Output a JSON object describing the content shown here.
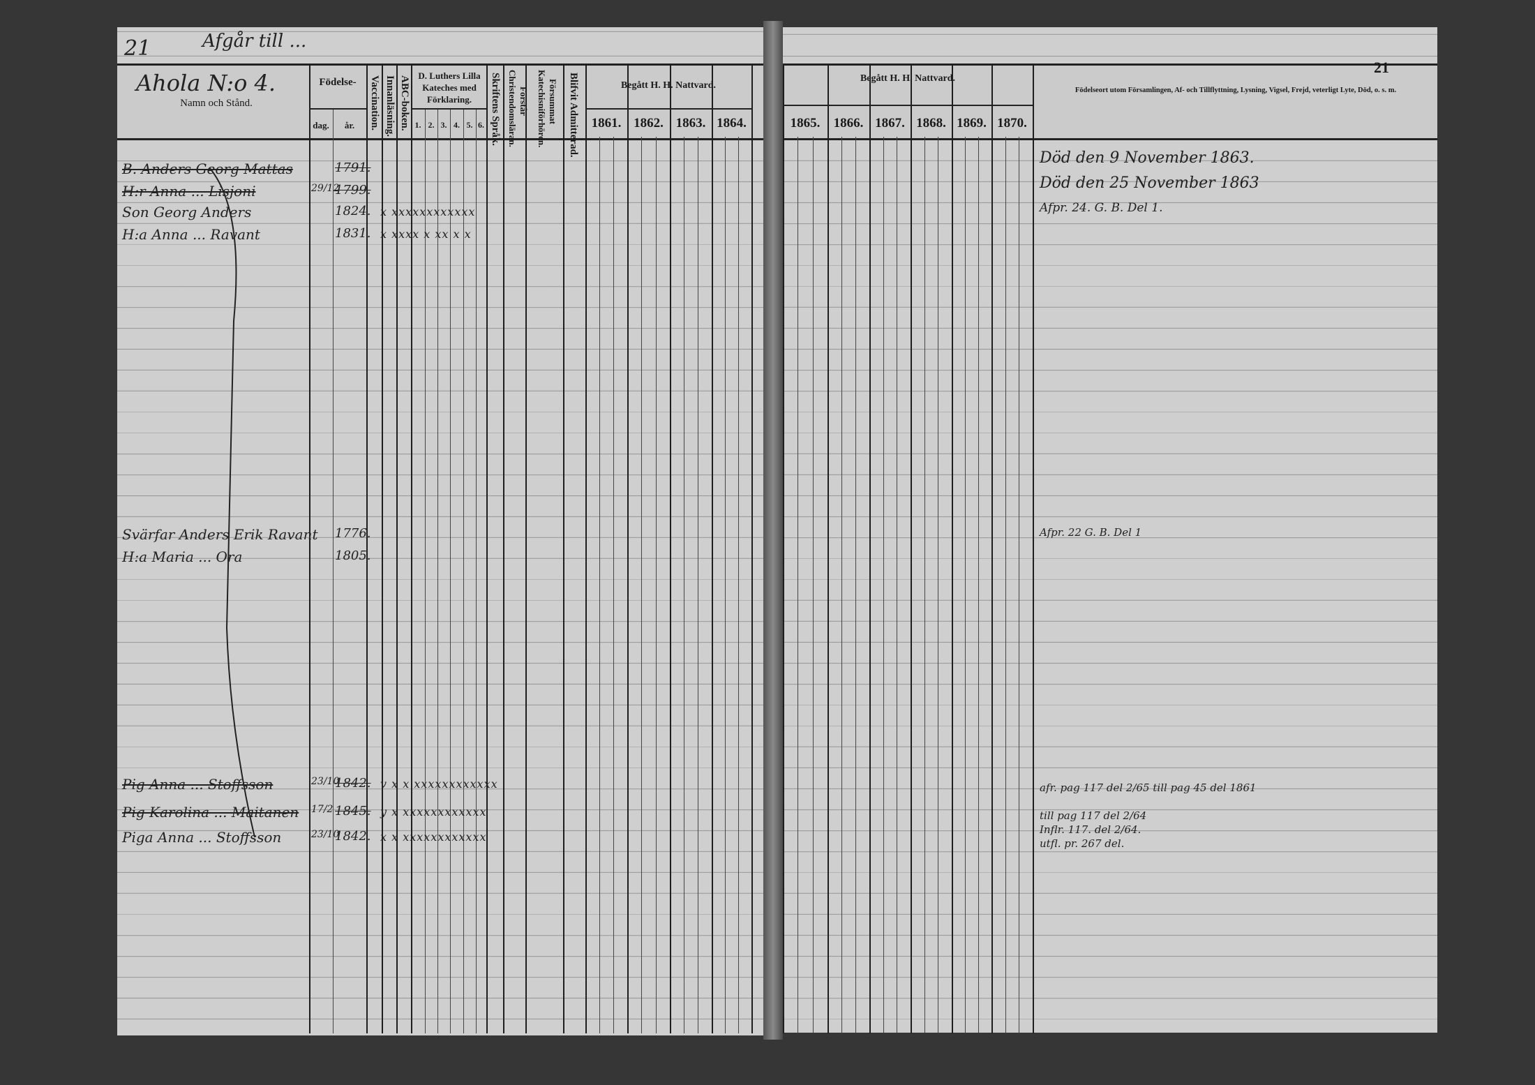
{
  "left_page": {
    "page_number_handwritten": "21",
    "heading_handwritten": "Afgår till ...",
    "household_handwritten": "Ahola N:o 4.",
    "columns": {
      "name": "Namn och Stånd.",
      "birth": "Födelse-",
      "birth_day": "dag.",
      "birth_year": "år.",
      "vaccination": "Vaccination.",
      "reading": "Innanläsning.",
      "abc": "ABC-boken.",
      "catechism": "D. Luthers Lilla Kateches med Förklaring.",
      "catechism_parts": [
        "1.",
        "2.",
        "3.",
        "4.",
        "5.",
        "6."
      ],
      "scripture": "Skriftens Språk.",
      "understands": "Förstår Christendomsläran.",
      "missed": "Försummat Katechisniförhören.",
      "admitted": "Blifvit Admitterad.",
      "communion": "Begått H. H. Nattvard.",
      "years": [
        "1861.",
        "1862.",
        "1863.",
        "1864."
      ]
    },
    "entries": [
      {
        "name": "B. Anders Georg Mattas",
        "day": "",
        "year": "1791.",
        "marks": "",
        "struck": true
      },
      {
        "name": "H:r Anna ... Lisjoni",
        "day": "29/12",
        "year": "1799.",
        "marks": "",
        "struck": true
      },
      {
        "name": "Son Georg Anders",
        "day": "",
        "year": "1824.",
        "marks": "x  xxxxxxxxxxxx",
        "struck": false
      },
      {
        "name": "H:a Anna ... Ravant",
        "day": "",
        "year": "1831.",
        "marks": "x  xxxx x xx x x",
        "struck": false
      },
      {
        "name": "Svärfar Anders Erik Ravant",
        "day": "",
        "year": "1776.",
        "marks": "",
        "struck": false
      },
      {
        "name": "H:a Maria ... Ora",
        "day": "",
        "year": "1805.",
        "marks": "",
        "struck": false
      },
      {
        "name": "Pig Anna ... Stoffsson",
        "day": "23/10",
        "year": "1842.",
        "marks": "v x  x  xxxxxxxxxxxx",
        "struck": true
      },
      {
        "name": "Pig Karolina ... Maitanen",
        "day": "17/2",
        "year": "1845.",
        "marks": "y  x  xxxxxxxxxxxx",
        "struck": true
      },
      {
        "name": "Piga Anna ... Stoffsson",
        "day": "23/10",
        "year": "1842.",
        "marks": "x  x  xxxxxxxxxxxx",
        "struck": false
      }
    ]
  },
  "right_page": {
    "page_number": "21",
    "columns": {
      "communion": "Begått H. H. Nattvard.",
      "years": [
        "1865.",
        "1866.",
        "1867.",
        "1868.",
        "1869.",
        "1870."
      ],
      "remarks": "Födelseort utom Församlingen, Af- och Tillflyttning, Lysning, Vigsel, Frejd, veterligt Lyte, Död, o. s. m."
    },
    "remarks": [
      "Död den 9 November 1863.",
      "Död den 25 November 1863",
      "Afpr. 24. G. B. Del 1.",
      "Afpr. 22 G. B. Del 1",
      "afr. pag 117 del 2/65   till pag 45 del 1861",
      "till pag 117 del 2/64",
      "Inflr. 117. del 2/64.",
      "utfl. pr. 267 del."
    ]
  },
  "colors": {
    "paper": "#cfcfcf",
    "background": "#363636",
    "ink": "#222222"
  }
}
